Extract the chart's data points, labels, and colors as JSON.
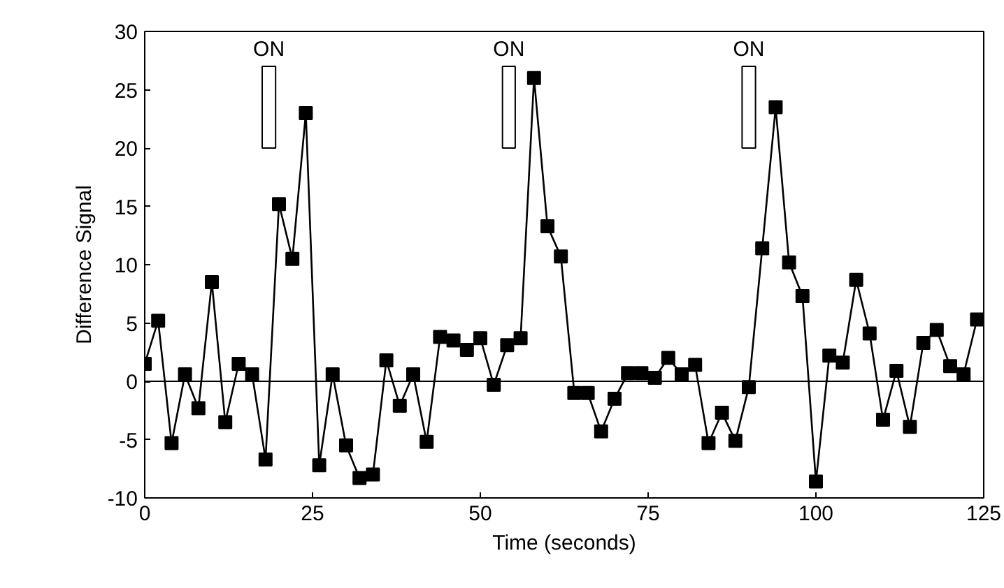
{
  "chart_data": {
    "type": "line",
    "xlabel": "Time (seconds)",
    "ylabel": "Difference Signal",
    "x": [
      0,
      2,
      4,
      6,
      8,
      10,
      12,
      14,
      16,
      18,
      20,
      22,
      24,
      26,
      28,
      30,
      32,
      34,
      36,
      38,
      40,
      42,
      44,
      46,
      48,
      50,
      52,
      54,
      56,
      58,
      60,
      62,
      64,
      66,
      68,
      70,
      72,
      74,
      76,
      78,
      80,
      82,
      84,
      86,
      88,
      90,
      92,
      94,
      96,
      98,
      100,
      102,
      104,
      106,
      108,
      110,
      112,
      114,
      116,
      118,
      120,
      122,
      124
    ],
    "series": [
      {
        "color": "#000000",
        "values": [
          1.5,
          5.2,
          -5.3,
          0.6,
          -2.3,
          8.5,
          -3.5,
          1.5,
          0.6,
          -6.7,
          15.2,
          10.5,
          23,
          -7.2,
          0.6,
          -5.5,
          -8.3,
          -8,
          1.8,
          -2.1,
          0.6,
          -5.2,
          3.8,
          3.5,
          2.7,
          3.7,
          -0.3,
          3.1,
          3.7,
          26,
          13.3,
          10.7,
          -1,
          -1,
          -4.3,
          -1.5,
          0.7,
          0.7,
          0.3,
          2,
          0.6,
          1.4,
          -5.3,
          -2.7,
          -5.1,
          -0.5,
          11.4,
          23.5,
          10.2,
          7.3,
          -8.6,
          2.2,
          1.6,
          8.7,
          4.1,
          -3.3,
          0.9,
          -3.9,
          3.3,
          4.4,
          1.3,
          0.6,
          5.3
        ]
      }
    ],
    "xlim": [
      0,
      125
    ],
    "ylim": [
      -10,
      30
    ],
    "xticks": [
      0,
      25,
      50,
      75,
      100,
      125
    ],
    "yticks": [
      -10,
      -5,
      0,
      5,
      10,
      15,
      20,
      25,
      30
    ],
    "marker": "square",
    "line_style": "solid",
    "grid": false,
    "ref_lines": [
      {
        "axis": "y",
        "value": 0,
        "color": "#000000"
      }
    ],
    "bands": [
      {
        "axis": "x",
        "from": 17.5,
        "to": 19.5,
        "label": "ON",
        "color": "#ffffff"
      },
      {
        "axis": "x",
        "from": 53.3,
        "to": 55.2,
        "label": "ON",
        "color": "#ffffff"
      },
      {
        "axis": "x",
        "from": 89,
        "to": 91,
        "label": "ON",
        "color": "#ffffff"
      }
    ]
  }
}
